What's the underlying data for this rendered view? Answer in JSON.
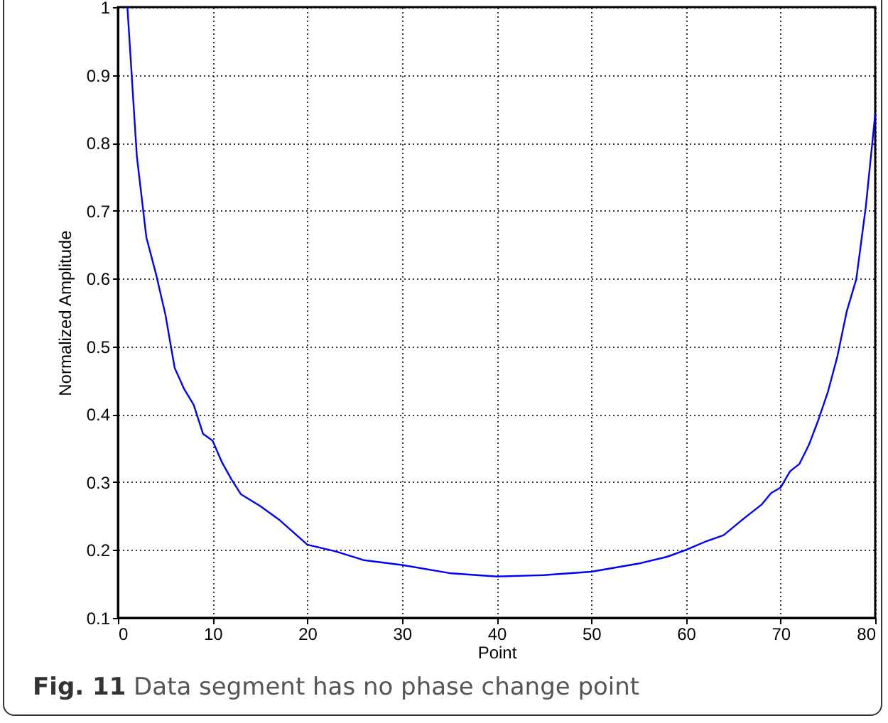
{
  "chart_data": {
    "type": "line",
    "xlabel": "Point",
    "ylabel": "Normalized Amplitude",
    "annotations": [
      "Fig. 11 Data segment has no phase change point"
    ],
    "x": [
      1,
      2,
      3,
      4,
      5,
      6,
      7,
      8,
      9,
      10,
      11,
      12,
      13,
      15,
      17,
      20,
      23,
      26,
      30,
      35,
      40,
      45,
      50,
      55,
      58,
      60,
      62,
      64,
      66,
      68,
      69,
      70,
      71,
      72,
      73,
      74,
      75,
      76,
      77,
      78,
      79,
      80
    ],
    "series": [
      {
        "color": "#0000ff",
        "values": [
          1.0,
          0.78,
          0.661,
          0.608,
          0.548,
          0.468,
          0.437,
          0.414,
          0.371,
          0.361,
          0.329,
          0.304,
          0.282,
          0.265,
          0.245,
          0.208,
          0.198,
          0.185,
          0.178,
          0.166,
          0.161,
          0.163,
          0.168,
          0.18,
          0.19,
          0.2,
          0.212,
          0.222,
          0.245,
          0.267,
          0.284,
          0.292,
          0.316,
          0.327,
          0.355,
          0.392,
          0.433,
          0.485,
          0.552,
          0.599,
          0.705,
          0.842
        ]
      }
    ],
    "xlim": [
      0,
      80
    ],
    "xticks": [
      0,
      10,
      20,
      30,
      40,
      50,
      60,
      70,
      80
    ],
    "ylim": [
      0.1,
      1
    ],
    "yticks": [
      0.1,
      0.2,
      0.3,
      0.4,
      0.5,
      0.6,
      0.7,
      0.8,
      0.9,
      1
    ],
    "grid": true,
    "line_style": "solid"
  }
}
